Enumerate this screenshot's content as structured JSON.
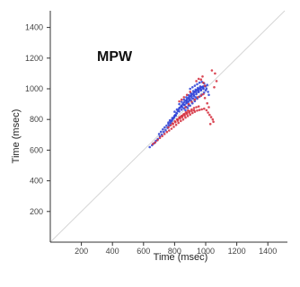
{
  "chart_data": {
    "type": "scatter",
    "title": "",
    "annotation": "MPW",
    "xlabel": "Time (msec)",
    "ylabel": "Time (msec)",
    "xlim": [
      0,
      1600
    ],
    "ylim": [
      0,
      1600
    ],
    "x_ticks": [
      "200",
      "400",
      "600",
      "800",
      "1000",
      "1200",
      "1400"
    ],
    "y_ticks": [
      "200",
      "400",
      "600",
      "800",
      "1000",
      "1200",
      "1400"
    ],
    "reference_line": "identity",
    "grid": false,
    "colors": {
      "primary": "#2b3fd6",
      "secondary": "#d42a3a",
      "identity": "#d5d5d5",
      "axis": "#333333"
    },
    "series": [
      {
        "color": "blue",
        "points": [
          [
            640,
            620
          ],
          [
            655,
            632
          ],
          [
            668,
            645
          ],
          [
            680,
            660
          ],
          [
            692,
            672
          ],
          [
            705,
            690
          ],
          [
            718,
            702
          ],
          [
            730,
            718
          ],
          [
            742,
            730
          ],
          [
            755,
            745
          ],
          [
            765,
            760
          ],
          [
            775,
            775
          ],
          [
            782,
            790
          ],
          [
            790,
            805
          ],
          [
            798,
            818
          ],
          [
            805,
            830
          ],
          [
            812,
            842
          ],
          [
            820,
            855
          ],
          [
            828,
            866
          ],
          [
            835,
            878
          ],
          [
            842,
            888
          ],
          [
            850,
            898
          ],
          [
            858,
            908
          ],
          [
            865,
            916
          ],
          [
            872,
            924
          ],
          [
            880,
            932
          ],
          [
            888,
            940
          ],
          [
            895,
            948
          ],
          [
            902,
            955
          ],
          [
            910,
            962
          ],
          [
            918,
            968
          ],
          [
            925,
            975
          ],
          [
            932,
            982
          ],
          [
            940,
            988
          ],
          [
            948,
            993
          ],
          [
            955,
            998
          ],
          [
            962,
            1003
          ],
          [
            970,
            1008
          ],
          [
            978,
            1012
          ],
          [
            985,
            1016
          ],
          [
            830,
            900
          ],
          [
            845,
            915
          ],
          [
            860,
            930
          ],
          [
            875,
            945
          ],
          [
            890,
            958
          ],
          [
            905,
            970
          ],
          [
            920,
            985
          ],
          [
            935,
            995
          ],
          [
            950,
            1005
          ],
          [
            965,
            1015
          ],
          [
            850,
            880
          ],
          [
            865,
            895
          ],
          [
            880,
            910
          ],
          [
            895,
            925
          ],
          [
            910,
            940
          ],
          [
            925,
            952
          ],
          [
            940,
            965
          ],
          [
            955,
            978
          ],
          [
            970,
            990
          ],
          [
            985,
            1000
          ],
          [
            870,
            860
          ],
          [
            885,
            875
          ],
          [
            900,
            890
          ],
          [
            915,
            905
          ],
          [
            930,
            920
          ],
          [
            945,
            935
          ],
          [
            960,
            948
          ],
          [
            975,
            962
          ],
          [
            990,
            975
          ],
          [
            1000,
            990
          ],
          [
            880,
            920
          ],
          [
            895,
            935
          ],
          [
            910,
            950
          ],
          [
            925,
            960
          ],
          [
            940,
            975
          ],
          [
            955,
            985
          ],
          [
            970,
            995
          ],
          [
            985,
            1005
          ],
          [
            1000,
            1015
          ],
          [
            1010,
            1025
          ],
          [
            800,
            850
          ],
          [
            815,
            865
          ],
          [
            830,
            875
          ],
          [
            845,
            885
          ],
          [
            860,
            895
          ],
          [
            875,
            905
          ],
          [
            890,
            915
          ],
          [
            905,
            925
          ],
          [
            920,
            935
          ],
          [
            935,
            945
          ],
          [
            760,
            780
          ],
          [
            770,
            795
          ],
          [
            785,
            810
          ],
          [
            800,
            825
          ],
          [
            815,
            840
          ],
          [
            830,
            852
          ],
          [
            845,
            864
          ],
          [
            860,
            872
          ],
          [
            875,
            882
          ],
          [
            890,
            892
          ],
          [
            900,
            1000
          ],
          [
            915,
            1010
          ],
          [
            930,
            1020
          ],
          [
            945,
            1030
          ],
          [
            960,
            1040
          ],
          [
            975,
            1045
          ],
          [
            990,
            1035
          ],
          [
            1005,
            1000
          ],
          [
            1015,
            980
          ],
          [
            1020,
            960
          ],
          [
            700,
            705
          ],
          [
            712,
            720
          ],
          [
            724,
            735
          ],
          [
            736,
            748
          ],
          [
            748,
            760
          ],
          [
            760,
            772
          ],
          [
            772,
            786
          ],
          [
            784,
            798
          ],
          [
            796,
            812
          ],
          [
            808,
            826
          ]
        ]
      },
      {
        "color": "red",
        "points": [
          [
            660,
            640
          ],
          [
            675,
            650
          ],
          [
            690,
            665
          ],
          [
            705,
            680
          ],
          [
            720,
            692
          ],
          [
            735,
            705
          ],
          [
            750,
            718
          ],
          [
            765,
            728
          ],
          [
            780,
            740
          ],
          [
            795,
            752
          ],
          [
            810,
            765
          ],
          [
            825,
            778
          ],
          [
            840,
            790
          ],
          [
            855,
            800
          ],
          [
            870,
            812
          ],
          [
            885,
            822
          ],
          [
            900,
            832
          ],
          [
            915,
            842
          ],
          [
            930,
            850
          ],
          [
            945,
            858
          ],
          [
            960,
            862
          ],
          [
            975,
            866
          ],
          [
            990,
            870
          ],
          [
            1005,
            860
          ],
          [
            1015,
            845
          ],
          [
            1025,
            830
          ],
          [
            1035,
            815
          ],
          [
            1045,
            800
          ],
          [
            1050,
            785
          ],
          [
            1030,
            770
          ],
          [
            820,
            800
          ],
          [
            835,
            815
          ],
          [
            850,
            825
          ],
          [
            865,
            835
          ],
          [
            880,
            845
          ],
          [
            895,
            855
          ],
          [
            910,
            865
          ],
          [
            925,
            875
          ],
          [
            940,
            880
          ],
          [
            955,
            885
          ],
          [
            790,
            770
          ],
          [
            805,
            782
          ],
          [
            820,
            792
          ],
          [
            835,
            805
          ],
          [
            850,
            815
          ],
          [
            865,
            825
          ],
          [
            880,
            835
          ],
          [
            895,
            845
          ],
          [
            910,
            855
          ],
          [
            925,
            860
          ],
          [
            870,
            880
          ],
          [
            890,
            900
          ],
          [
            910,
            915
          ],
          [
            930,
            930
          ],
          [
            950,
            945
          ],
          [
            970,
            955
          ],
          [
            985,
            965
          ],
          [
            995,
            940
          ],
          [
            1010,
            905
          ],
          [
            1020,
            880
          ],
          [
            760,
            748
          ],
          [
            775,
            762
          ],
          [
            788,
            775
          ],
          [
            802,
            788
          ],
          [
            816,
            800
          ],
          [
            830,
            812
          ],
          [
            844,
            822
          ],
          [
            858,
            834
          ],
          [
            872,
            846
          ],
          [
            886,
            858
          ],
          [
            940,
            1050
          ],
          [
            955,
            1065
          ],
          [
            970,
            1060
          ],
          [
            985,
            1040
          ],
          [
            995,
            1020
          ],
          [
            900,
            980
          ],
          [
            880,
            960
          ],
          [
            860,
            945
          ],
          [
            845,
            930
          ],
          [
            830,
            918
          ],
          [
            1040,
            1120
          ],
          [
            1060,
            1100
          ],
          [
            980,
            1080
          ],
          [
            1070,
            1050
          ],
          [
            1055,
            1010
          ]
        ]
      }
    ]
  }
}
